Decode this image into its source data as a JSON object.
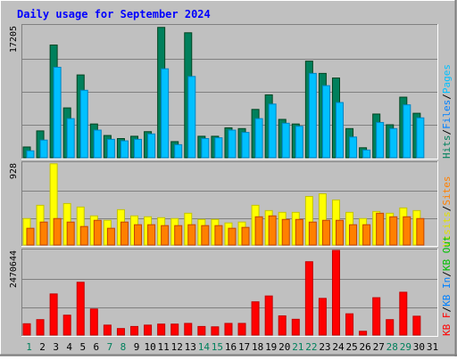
{
  "title": "Daily usage for September 2024",
  "colors": {
    "background": "#c0c0c0",
    "hits": "#00805c",
    "files": "#00c0ff",
    "pages": "#00e0ff",
    "visits": "#ffff00",
    "sites": "#ff8000",
    "kb_in": "#0080ff",
    "kb_out": "#00c000",
    "kb_f": "#ff0000",
    "title": "#0000ff",
    "weekend_day": "#00805c",
    "weekday": "#000000"
  },
  "chart_data": [
    {
      "type": "bar",
      "panel": "hits-files-pages",
      "scale_label": "17205",
      "ylim": [
        0,
        17205
      ],
      "categories": [
        "1",
        "2",
        "3",
        "4",
        "5",
        "6",
        "7",
        "8",
        "9",
        "10",
        "11",
        "12",
        "13",
        "14",
        "15",
        "16",
        "17",
        "18",
        "19",
        "20",
        "21",
        "22",
        "23",
        "24",
        "25",
        "26",
        "27",
        "28",
        "29",
        "30",
        "31"
      ],
      "series": [
        {
          "name": "Hits",
          "values": [
            1400,
            3500,
            14700,
            6500,
            10800,
            4400,
            2900,
            2500,
            2800,
            3400,
            17000,
            2100,
            16300,
            2800,
            2800,
            3900,
            3800,
            6300,
            8200,
            5000,
            4400,
            12600,
            11000,
            10400,
            3800,
            1300,
            5700,
            4300,
            7900,
            5800,
            null
          ]
        },
        {
          "name": "Files",
          "values": [
            900,
            2300,
            11800,
            5100,
            8800,
            3600,
            2400,
            2200,
            2400,
            3100,
            11600,
            1700,
            10600,
            2500,
            2600,
            3600,
            3300,
            5100,
            7000,
            4500,
            4100,
            11000,
            9400,
            7200,
            2700,
            1000,
            4600,
            3800,
            6900,
            5200,
            null
          ]
        },
        {
          "name": "Pages",
          "values": [
            null,
            null,
            null,
            null,
            null,
            null,
            null,
            null,
            null,
            null,
            null,
            null,
            null,
            null,
            null,
            null,
            null,
            null,
            null,
            null,
            null,
            null,
            null,
            null,
            null,
            null,
            null,
            null,
            null,
            null,
            null
          ]
        }
      ]
    },
    {
      "type": "bar",
      "panel": "visits-sites",
      "scale_label": "928",
      "ylim": [
        0,
        928
      ],
      "categories": [
        "1",
        "2",
        "3",
        "4",
        "5",
        "6",
        "7",
        "8",
        "9",
        "10",
        "11",
        "12",
        "13",
        "14",
        "15",
        "16",
        "17",
        "18",
        "19",
        "20",
        "21",
        "22",
        "23",
        "24",
        "25",
        "26",
        "27",
        "28",
        "29",
        "30",
        "31"
      ],
      "series": [
        {
          "name": "Visits",
          "values": [
            300,
            450,
            920,
            470,
            430,
            330,
            280,
            400,
            330,
            320,
            310,
            300,
            360,
            290,
            290,
            250,
            260,
            450,
            390,
            370,
            370,
            550,
            580,
            510,
            370,
            300,
            380,
            360,
            420,
            390,
            null
          ]
        },
        {
          "name": "Sites",
          "values": [
            190,
            260,
            300,
            260,
            210,
            280,
            190,
            260,
            230,
            230,
            220,
            220,
            230,
            220,
            220,
            190,
            200,
            320,
            330,
            290,
            290,
            260,
            280,
            280,
            230,
            230,
            360,
            320,
            320,
            300,
            null
          ]
        }
      ]
    },
    {
      "type": "bar",
      "panel": "kbin-kbout-kbf",
      "scale_label": "2470644",
      "ylim": [
        0,
        2470644
      ],
      "categories": [
        "1",
        "2",
        "3",
        "4",
        "5",
        "6",
        "7",
        "8",
        "9",
        "10",
        "11",
        "12",
        "13",
        "14",
        "15",
        "16",
        "17",
        "18",
        "19",
        "20",
        "21",
        "22",
        "23",
        "24",
        "25",
        "26",
        "27",
        "28",
        "29",
        "30",
        "31"
      ],
      "series": [
        {
          "name": "KB F",
          "values": [
            330000,
            450000,
            1200000,
            580000,
            1540000,
            760000,
            290000,
            190000,
            250000,
            290000,
            320000,
            320000,
            340000,
            250000,
            240000,
            340000,
            340000,
            970000,
            1140000,
            560000,
            460000,
            2140000,
            1070000,
            2470000,
            620000,
            110000,
            1090000,
            450000,
            1250000,
            550000,
            null
          ]
        },
        {
          "name": "KB In",
          "values": [
            null,
            null,
            null,
            null,
            null,
            null,
            null,
            null,
            null,
            null,
            null,
            null,
            null,
            null,
            null,
            null,
            null,
            null,
            null,
            null,
            null,
            null,
            null,
            null,
            null,
            null,
            null,
            null,
            null,
            null,
            null
          ]
        },
        {
          "name": "KB Out",
          "values": [
            null,
            null,
            null,
            null,
            null,
            null,
            null,
            null,
            null,
            null,
            null,
            null,
            null,
            null,
            null,
            null,
            null,
            null,
            null,
            null,
            null,
            null,
            null,
            null,
            null,
            null,
            null,
            null,
            null,
            null,
            null
          ]
        }
      ]
    }
  ],
  "weekend_days": [
    1,
    7,
    8,
    14,
    15,
    21,
    22,
    28,
    29
  ],
  "legend": {
    "top": [
      {
        "text": "Hits",
        "color": "#00805c"
      },
      {
        "text": "/",
        "color": "#000000"
      },
      {
        "text": "Files",
        "color": "#0080ff"
      },
      {
        "text": "/",
        "color": "#000000"
      },
      {
        "text": "Pages",
        "color": "#00c0ff"
      }
    ],
    "middle": [
      {
        "text": "Visits",
        "color": "#e0e000"
      },
      {
        "text": "/",
        "color": "#000000"
      },
      {
        "text": "Sites",
        "color": "#ff8000"
      }
    ],
    "bottom": [
      {
        "text": "KB F",
        "color": "#ff0000"
      },
      {
        "text": "/",
        "color": "#000000"
      },
      {
        "text": "KB In",
        "color": "#0080ff"
      },
      {
        "text": "/",
        "color": "#000000"
      },
      {
        "text": "KB Out",
        "color": "#00c000"
      }
    ]
  }
}
